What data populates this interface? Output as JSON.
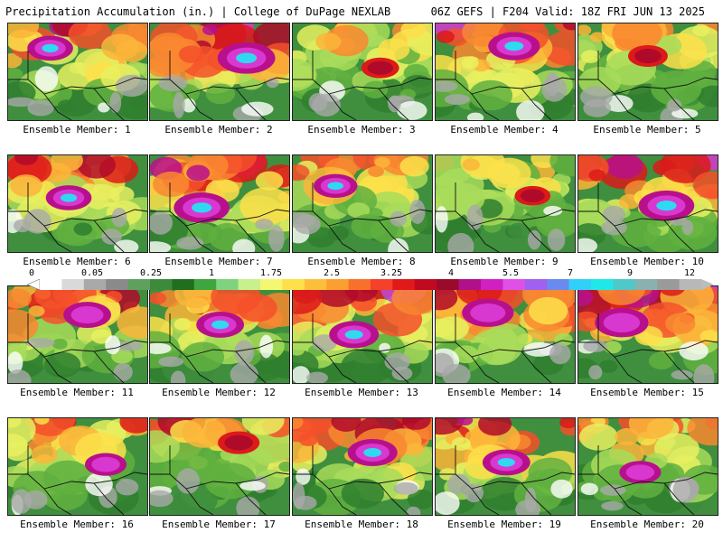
{
  "header": {
    "left_title": "Precipitation Accumulation (in.) | College of DuPage NEXLAB",
    "right_title": "06Z GEFS | F204 Valid: 18Z FRI JUN 13 2025"
  },
  "caption_prefix": "Ensemble Member:",
  "members": [
    {
      "id": "1",
      "intensity": 0.55,
      "peak": "cyan"
    },
    {
      "id": "2",
      "intensity": 0.85,
      "peak": "cyan"
    },
    {
      "id": "3",
      "intensity": 0.35,
      "peak": "red"
    },
    {
      "id": "4",
      "intensity": 0.7,
      "peak": "cyan"
    },
    {
      "id": "5",
      "intensity": 0.4,
      "peak": "red"
    },
    {
      "id": "6",
      "intensity": 0.55,
      "peak": "cyan"
    },
    {
      "id": "7",
      "intensity": 0.8,
      "peak": "cyan"
    },
    {
      "id": "8",
      "intensity": 0.5,
      "peak": "cyan"
    },
    {
      "id": "9",
      "intensity": 0.3,
      "peak": "red"
    },
    {
      "id": "10",
      "intensity": 0.8,
      "peak": "cyan"
    },
    {
      "id": "11",
      "intensity": 0.6,
      "peak": "purple"
    },
    {
      "id": "12",
      "intensity": 0.6,
      "peak": "cyan"
    },
    {
      "id": "13",
      "intensity": 0.65,
      "peak": "cyan"
    },
    {
      "id": "14",
      "intensity": 0.7,
      "peak": "purple"
    },
    {
      "id": "15",
      "intensity": 0.75,
      "peak": "purple"
    },
    {
      "id": "16",
      "intensity": 0.45,
      "peak": "purple"
    },
    {
      "id": "17",
      "intensity": 0.45,
      "peak": "red"
    },
    {
      "id": "18",
      "intensity": 0.65,
      "peak": "cyan"
    },
    {
      "id": "19",
      "intensity": 0.6,
      "peak": "cyan"
    },
    {
      "id": "20",
      "intensity": 0.45,
      "peak": "purple"
    }
  ],
  "colorbar": {
    "labels": [
      "0",
      "0.05",
      "0.25",
      "1",
      "1.75",
      "2.5",
      "3.25",
      "4",
      "5.5",
      "7",
      "9",
      "12"
    ],
    "colors": [
      "#ffffff",
      "#d9d9d9",
      "#a9a9a9",
      "#8a8a8a",
      "#5fa05f",
      "#3d8a3d",
      "#1f6f1f",
      "#3fa53f",
      "#7fd37f",
      "#c8f08c",
      "#f4f870",
      "#fde04a",
      "#fcbf3a",
      "#fb9f30",
      "#f9702a",
      "#f5402a",
      "#e01a1a",
      "#c00a20",
      "#9a0a2a",
      "#b0108a",
      "#d020c0",
      "#e050e8",
      "#a060f0",
      "#6a8af0",
      "#30d0f8",
      "#20e8e8",
      "#50c8c8",
      "#8ab0b0",
      "#9a9a9a",
      "#b8b8b8"
    ],
    "intensity_scale": [
      "#ffffff",
      "#e6e6e6",
      "#b4b4b4",
      "#3c8c3c",
      "#2f7f2f",
      "#60b040",
      "#a8dc5a",
      "#e8f060",
      "#fde04a",
      "#fbb53a",
      "#f98830",
      "#f5502a",
      "#dc1a1a",
      "#b00a2a",
      "#b8108c",
      "#d838d0",
      "#30d8f0"
    ]
  }
}
